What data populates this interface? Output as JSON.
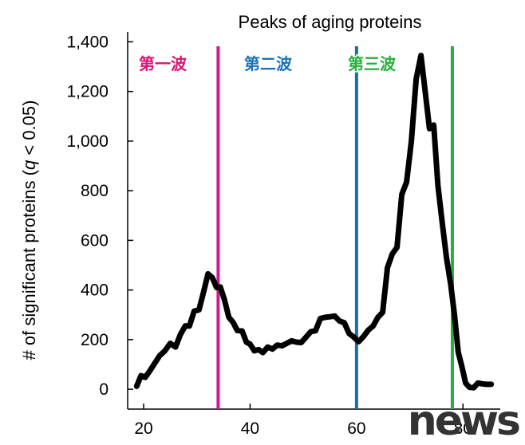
{
  "chart_data": {
    "type": "line",
    "title": "Peaks of aging proteins",
    "ylabel": "# of significant proteins (q < 0.05)",
    "ylabel_parts": [
      "# of significant proteins (",
      "q",
      " < 0.05)"
    ],
    "xlabel": "",
    "xlim": [
      17,
      87
    ],
    "ylim": [
      -80,
      1440
    ],
    "xticks": [
      20,
      40,
      60,
      80
    ],
    "yticks": [
      0,
      200,
      400,
      600,
      800,
      1000,
      1200,
      1400
    ],
    "ytick_labels": [
      "0",
      "200",
      "400",
      "600",
      "800",
      "1,000",
      "1,200",
      "1,400"
    ],
    "grid": false,
    "series": [
      {
        "color": "#000000",
        "x": [
          18.7,
          19.5,
          20.3,
          21.2,
          22.1,
          23.0,
          24.0,
          25.0,
          26.0,
          26.9,
          27.8,
          28.6,
          29.5,
          30.4,
          31.3,
          32.1,
          32.9,
          33.7,
          34.4,
          35.2,
          36.0,
          36.8,
          37.6,
          38.5,
          39.3,
          40.0,
          40.8,
          41.6,
          42.4,
          43.3,
          44.2,
          45.1,
          46.0,
          46.9,
          47.8,
          48.7,
          49.6,
          50.5,
          51.4,
          52.3,
          53.2,
          54.1,
          55.0,
          55.9,
          56.8,
          57.7,
          58.6,
          59.5,
          60.4,
          61.3,
          62.2,
          63.1,
          64.0,
          64.9,
          65.8,
          66.7,
          67.6,
          68.5,
          69.4,
          70.3,
          71.2,
          72.1,
          72.9,
          73.7,
          74.5,
          75.3,
          76.1,
          76.9,
          77.7,
          78.4,
          79.1,
          79.8,
          80.5,
          81.2,
          82.0,
          82.8,
          83.6,
          84.4,
          85.3,
          86.2,
          87.0,
          88.0,
          89.0,
          90.0
        ],
        "y": [
          12,
          55,
          48,
          75,
          105,
          135,
          155,
          185,
          170,
          220,
          255,
          255,
          315,
          320,
          395,
          465,
          450,
          410,
          412,
          360,
          290,
          270,
          237,
          235,
          190,
          182,
          155,
          160,
          148,
          170,
          162,
          178,
          175,
          185,
          195,
          190,
          188,
          210,
          232,
          236,
          285,
          290,
          292,
          295,
          275,
          268,
          225,
          210,
          192,
          212,
          238,
          255,
          290,
          310,
          490,
          545,
          572,
          785,
          835,
          1000,
          1250,
          1345,
          1200,
          1050,
          1065,
          820,
          670,
          530,
          420,
          300,
          150,
          90,
          25,
          8,
          6,
          25,
          22,
          20,
          20,
          20,
          20,
          20,
          20,
          20
        ]
      }
    ],
    "vlines": [
      {
        "x": 34,
        "color": "#d6168a",
        "label": "第一波",
        "label_color": "#d91475"
      },
      {
        "x": 60,
        "color": "#1b6f96",
        "label": "第二波",
        "label_color": "#1a74b8"
      },
      {
        "x": 78,
        "color": "#23b040",
        "label": "第三波",
        "label_color": "#22b23c"
      }
    ]
  },
  "watermark": "news"
}
